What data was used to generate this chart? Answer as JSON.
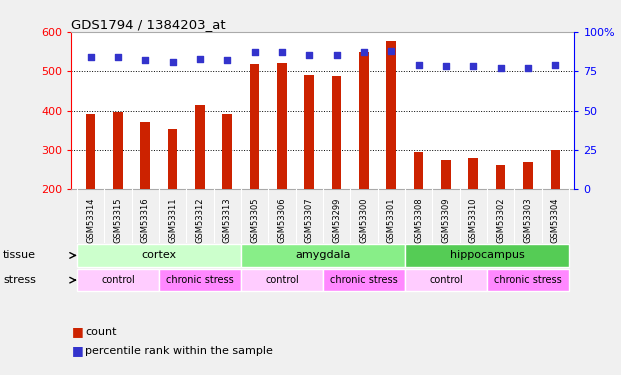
{
  "title": "GDS1794 / 1384203_at",
  "samples": [
    "GSM53314",
    "GSM53315",
    "GSM53316",
    "GSM53311",
    "GSM53312",
    "GSM53313",
    "GSM53305",
    "GSM53306",
    "GSM53307",
    "GSM53299",
    "GSM53300",
    "GSM53301",
    "GSM53308",
    "GSM53309",
    "GSM53310",
    "GSM53302",
    "GSM53303",
    "GSM53304"
  ],
  "counts": [
    390,
    395,
    372,
    352,
    413,
    390,
    518,
    520,
    490,
    487,
    550,
    578,
    295,
    273,
    278,
    262,
    270,
    300
  ],
  "percentiles": [
    84,
    84,
    82,
    81,
    83,
    82,
    87,
    87,
    85,
    85,
    87,
    88,
    79,
    78,
    78,
    77,
    77,
    79
  ],
  "bar_color": "#cc2200",
  "dot_color": "#3333cc",
  "ylim_left": [
    200,
    600
  ],
  "ylim_right": [
    0,
    100
  ],
  "yticks_left": [
    200,
    300,
    400,
    500,
    600
  ],
  "yticks_right": [
    0,
    25,
    50,
    75,
    100
  ],
  "ytick_right_labels": [
    "0",
    "25",
    "50",
    "75",
    "100%"
  ],
  "grid_values": [
    300,
    400,
    500
  ],
  "tissue_groups": [
    {
      "label": "cortex",
      "start": 0,
      "end": 6,
      "color": "#ccffcc"
    },
    {
      "label": "amygdala",
      "start": 6,
      "end": 12,
      "color": "#88ee88"
    },
    {
      "label": "hippocampus",
      "start": 12,
      "end": 18,
      "color": "#55cc55"
    }
  ],
  "stress_groups": [
    {
      "label": "control",
      "start": 0,
      "end": 3,
      "color": "#ffccff"
    },
    {
      "label": "chronic stress",
      "start": 3,
      "end": 6,
      "color": "#ff88ff"
    },
    {
      "label": "control",
      "start": 6,
      "end": 9,
      "color": "#ffccff"
    },
    {
      "label": "chronic stress",
      "start": 9,
      "end": 12,
      "color": "#ff88ff"
    },
    {
      "label": "control",
      "start": 12,
      "end": 15,
      "color": "#ffccff"
    },
    {
      "label": "chronic stress",
      "start": 15,
      "end": 18,
      "color": "#ff88ff"
    }
  ],
  "legend_count_label": "count",
  "legend_pct_label": "percentile rank within the sample",
  "tissue_label": "tissue",
  "stress_label": "stress",
  "bg_color": "#f0f0f0",
  "plot_bg_color": "#ffffff",
  "label_area_color": "#d8d8d8"
}
